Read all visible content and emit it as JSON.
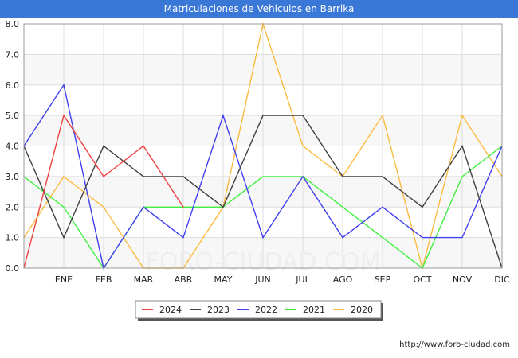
{
  "chart_data": {
    "type": "line",
    "title": "Matriculaciones de Vehiculos en Barrika",
    "categories": [
      "",
      "ENE",
      "FEB",
      "MAR",
      "ABR",
      "MAY",
      "JUN",
      "JUL",
      "AGO",
      "SEP",
      "OCT",
      "NOV",
      "DIC"
    ],
    "ylim": [
      0,
      8
    ],
    "yticks": [
      "0.0",
      "1.0",
      "2.0",
      "3.0",
      "4.0",
      "5.0",
      "6.0",
      "7.0",
      "8.0"
    ],
    "series": [
      {
        "name": "2024",
        "color": "#f04040",
        "values": [
          0,
          5,
          3,
          4,
          2,
          null,
          null,
          null,
          null,
          null,
          null,
          null,
          null
        ]
      },
      {
        "name": "2023",
        "color": "#404040",
        "values": [
          4,
          1,
          4,
          3,
          3,
          2,
          5,
          5,
          3,
          3,
          2,
          4,
          0
        ]
      },
      {
        "name": "2022",
        "color": "#4040f0",
        "values": [
          4,
          6,
          0,
          2,
          1,
          5,
          1,
          3,
          1,
          2,
          1,
          1,
          4
        ]
      },
      {
        "name": "2021",
        "color": "#40f040",
        "values": [
          3,
          2,
          0,
          2,
          2,
          2,
          3,
          3,
          2,
          1,
          0,
          3,
          4
        ]
      },
      {
        "name": "2020",
        "color": "#fbbb40",
        "values": [
          1,
          3,
          2,
          0,
          0,
          2,
          8,
          4,
          3,
          5,
          0,
          5,
          3
        ]
      }
    ],
    "watermark": "FORO-CIUDAD.COM",
    "legend_position": "bottom-center"
  },
  "footer": {
    "url": "http://www.foro-ciudad.com"
  }
}
